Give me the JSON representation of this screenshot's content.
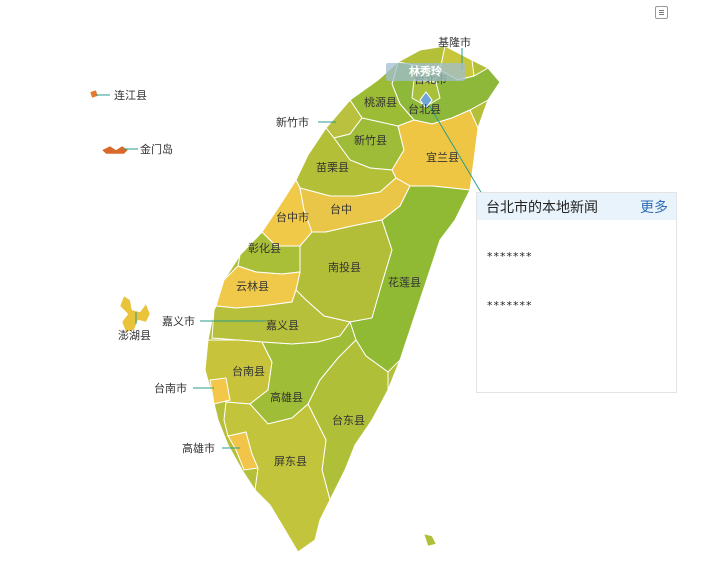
{
  "toolbox": {
    "icon": "data-view-icon"
  },
  "tooltip": {
    "text": "林秀玲"
  },
  "news_panel": {
    "title": "台北市的本地新闻",
    "more_label": "更多",
    "items": [
      "*******",
      "*******"
    ]
  },
  "regions": [
    {
      "id": "keelung",
      "label": "基隆市",
      "color": "#c8c63a"
    },
    {
      "id": "taipei-city",
      "label": "台北市",
      "color": "#a9c13a"
    },
    {
      "id": "taipei-county",
      "label": "台北县",
      "color": "#8eb83a"
    },
    {
      "id": "taoyuan",
      "label": "桃源县",
      "color": "#9cbc35"
    },
    {
      "id": "hsinchu-city",
      "label": "新竹市",
      "color": "#b9c13e"
    },
    {
      "id": "hsinchu-county",
      "label": "新竹县",
      "color": "#9ebc38"
    },
    {
      "id": "yilan",
      "label": "宜兰县",
      "color": "#efc544"
    },
    {
      "id": "miaoli",
      "label": "苗栗县",
      "color": "#b4bf38"
    },
    {
      "id": "taichung-city",
      "label": "台中市",
      "color": "#f0c948"
    },
    {
      "id": "taichung-county",
      "label": "台中",
      "color": "#e9c648"
    },
    {
      "id": "changhua",
      "label": "彰化县",
      "color": "#a8bf37"
    },
    {
      "id": "nantou",
      "label": "南投县",
      "color": "#b2be38"
    },
    {
      "id": "hualien",
      "label": "花莲县",
      "color": "#90b934"
    },
    {
      "id": "yunlin",
      "label": "云林县",
      "color": "#f0c94a"
    },
    {
      "id": "chiayi-city",
      "label": "嘉义市",
      "color": "#c2c23c"
    },
    {
      "id": "chiayi-county",
      "label": "嘉义县",
      "color": "#b7c03a"
    },
    {
      "id": "tainan-county",
      "label": "台南县",
      "color": "#c7c43c"
    },
    {
      "id": "tainan-city",
      "label": "台南市",
      "color": "#f2c74a"
    },
    {
      "id": "kaohsiung-county",
      "label": "高雄县",
      "color": "#9fbd36"
    },
    {
      "id": "kaohsiung-city",
      "label": "高雄市",
      "color": "#f1c54a"
    },
    {
      "id": "taitung",
      "label": "台东县",
      "color": "#b0bf38"
    },
    {
      "id": "pingtung",
      "label": "屏东县",
      "color": "#c2c43b"
    },
    {
      "id": "penghu",
      "label": "澎湖县",
      "color": "#e9c33a"
    },
    {
      "id": "lienchiang",
      "label": "连江县",
      "color": "#e57a2c"
    },
    {
      "id": "kinmen",
      "label": "金门岛",
      "color": "#d9692a"
    }
  ]
}
